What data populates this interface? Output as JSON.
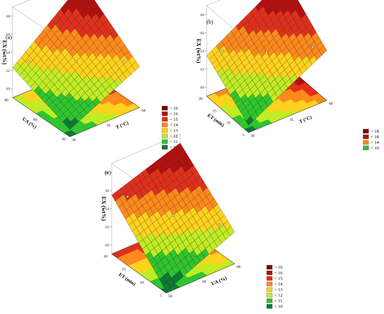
{
  "chart_data": [
    {
      "type": "surface3d",
      "panel": "(a)",
      "zlabel": "EX (wt%)",
      "xlabel": "T (°C)",
      "ylabel": "UA (%)",
      "z_ticks": [
        "18",
        "16",
        "14",
        "12",
        "10"
      ],
      "x_ticks": [
        "30",
        "45",
        "60"
      ],
      "y_ticks": [
        "50",
        "60",
        "80"
      ],
      "zlim": [
        9,
        19
      ],
      "surface": {
        "z00": 9.8,
        "z10": 13.5,
        "z01": 12.3,
        "z11": 18.5
      },
      "legend": [
        {
          "label": "> 16",
          "color": "#7a0000"
        },
        {
          "label": "< 16",
          "color": "#b40f0f"
        },
        {
          "label": "< 15",
          "color": "#e0301c"
        },
        {
          "label": "< 14",
          "color": "#ff8a1c"
        },
        {
          "label": "< 13",
          "color": "#ffd21c"
        },
        {
          "label": "< 12",
          "color": "#c0ec25"
        },
        {
          "label": "< 11",
          "color": "#2fc52f"
        },
        {
          "label": "< 10",
          "color": "#0d7a34"
        }
      ]
    },
    {
      "type": "surface3d",
      "panel": "(b)",
      "zlabel": "EX (wt%)",
      "xlabel": "T (°C)",
      "ylabel": "ET (min)",
      "z_ticks": [
        "18",
        "16",
        "14",
        "12",
        "10"
      ],
      "x_ticks": [
        "30",
        "45",
        "60"
      ],
      "y_ticks": [
        "5",
        "10",
        "15",
        "20"
      ],
      "zlim": [
        9,
        19
      ],
      "surface": {
        "z00": 9.8,
        "z10": 14.5,
        "z01": 13.5,
        "z11": 18.6
      },
      "legend": [
        {
          "label": "> 18",
          "color": "#7a0000"
        },
        {
          "label": "< 18",
          "color": "#b40f0f"
        },
        {
          "label": "< 14",
          "color": "#ff8a1c"
        },
        {
          "label": "< 10",
          "color": "#2fc52f"
        }
      ]
    },
    {
      "type": "surface3d",
      "panel": "(c)",
      "zlabel": "EX (wt%)",
      "xlabel": "UA (%)",
      "ylabel": "ET (min)",
      "z_ticks": [
        "18",
        "16",
        "14",
        "12",
        "10"
      ],
      "x_ticks": [
        "50",
        "60",
        "80"
      ],
      "y_ticks": [
        "5",
        "10",
        "15",
        "20"
      ],
      "zlim": [
        9,
        19
      ],
      "surface": {
        "z00": 9.2,
        "z10": 12.5,
        "z01": 15.5,
        "z11": 18.0
      },
      "legend": [
        {
          "label": "> 16",
          "color": "#7a0000"
        },
        {
          "label": "< 16",
          "color": "#b40f0f"
        },
        {
          "label": "< 15",
          "color": "#e0301c"
        },
        {
          "label": "< 14",
          "color": "#ff8a1c"
        },
        {
          "label": "< 13",
          "color": "#ffd21c"
        },
        {
          "label": "< 12",
          "color": "#c0ec25"
        },
        {
          "label": "< 11",
          "color": "#2fc52f"
        },
        {
          "label": "< 10",
          "color": "#0d7a34"
        }
      ]
    }
  ]
}
